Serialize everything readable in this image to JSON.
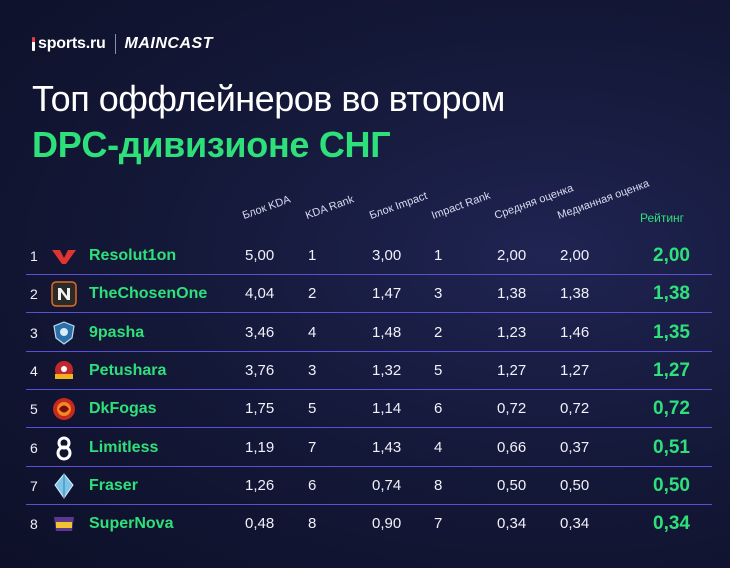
{
  "brand": {
    "sports": "sports.ru",
    "maincast": "MAINCAST"
  },
  "title": {
    "line1": "Топ оффлейнеров во втором",
    "line2": "DPC-дивизионе СНГ"
  },
  "columns": {
    "kda": "Блок KDA",
    "kda_rank": "KDA Rank",
    "impact": "Блок Impact",
    "impact_rank": "Impact Rank",
    "avg": "Средняя оценка",
    "median": "Медианная оценка",
    "rating": "Рейтинг"
  },
  "rows": [
    {
      "rank": "1",
      "name": "Resolut1on",
      "logo": "team-vp-icon",
      "kda": "5,00",
      "kda_rank": "1",
      "impact": "3,00",
      "impact_rank": "1",
      "avg": "2,00",
      "median": "2,00",
      "rating": "2,00"
    },
    {
      "rank": "2",
      "name": "TheChosenOne",
      "logo": "team-nemiga-icon",
      "kda": "4,04",
      "kda_rank": "2",
      "impact": "1,47",
      "impact_rank": "3",
      "avg": "1,38",
      "median": "1,38",
      "rating": "1,38"
    },
    {
      "rank": "3",
      "name": "9pasha",
      "logo": "team-knight-icon",
      "kda": "3,46",
      "kda_rank": "4",
      "impact": "1,48",
      "impact_rank": "2",
      "avg": "1,23",
      "median": "1,46",
      "rating": "1,35"
    },
    {
      "rank": "4",
      "name": "Petushara",
      "logo": "team-cyber-icon",
      "kda": "3,76",
      "kda_rank": "3",
      "impact": "1,32",
      "impact_rank": "5",
      "avg": "1,27",
      "median": "1,27",
      "rating": "1,27"
    },
    {
      "rank": "5",
      "name": "DkFogas",
      "logo": "team-dragon-icon",
      "kda": "1,75",
      "kda_rank": "5",
      "impact": "1,14",
      "impact_rank": "6",
      "avg": "0,72",
      "median": "0,72",
      "rating": "0,72"
    },
    {
      "rank": "6",
      "name": "Limitless",
      "logo": "team-b8-icon",
      "kda": "1,19",
      "kda_rank": "7",
      "impact": "1,43",
      "impact_rank": "4",
      "avg": "0,66",
      "median": "0,37",
      "rating": "0,51"
    },
    {
      "rank": "7",
      "name": "Fraser",
      "logo": "team-crystal-icon",
      "kda": "1,26",
      "kda_rank": "6",
      "impact": "0,74",
      "impact_rank": "8",
      "avg": "0,50",
      "median": "0,50",
      "rating": "0,50"
    },
    {
      "rank": "8",
      "name": "SuperNova",
      "logo": "team-five-icon",
      "kda": "0,48",
      "kda_rank": "8",
      "impact": "0,90",
      "impact_rank": "7",
      "avg": "0,34",
      "median": "0,34",
      "rating": "0,34"
    }
  ],
  "colors": {
    "accent": "#2ee07a",
    "separator": "#5a4fd6",
    "background": "#15193a"
  }
}
